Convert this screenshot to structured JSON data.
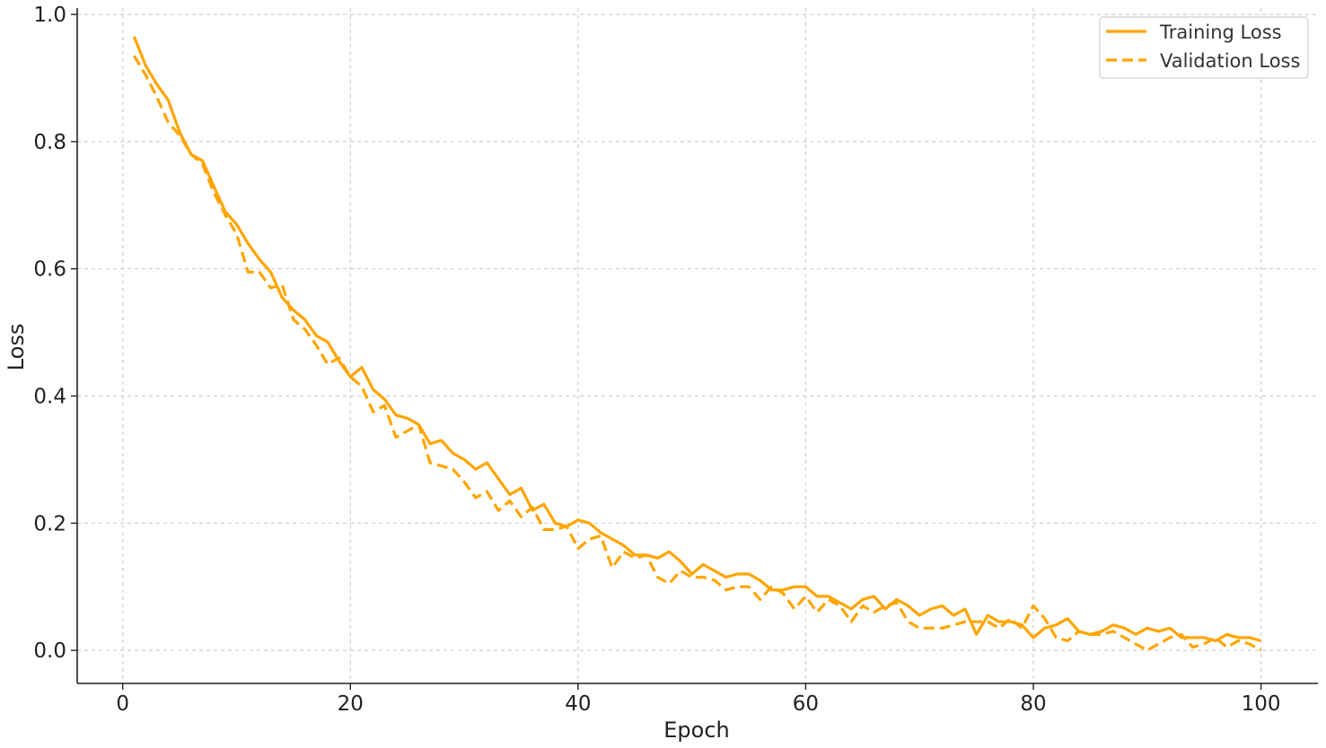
{
  "chart_data": {
    "type": "line",
    "title": "",
    "xlabel": "Epoch",
    "ylabel": "Loss",
    "xlim": [
      -4,
      105
    ],
    "ylim": [
      -0.052,
      1.01
    ],
    "xticks": [
      0,
      20,
      40,
      60,
      80,
      100
    ],
    "yticks": [
      0.0,
      0.2,
      0.4,
      0.6,
      0.8,
      1.0
    ],
    "xtick_labels": [
      "0",
      "20",
      "40",
      "60",
      "80",
      "100"
    ],
    "ytick_labels": [
      "0.0",
      "0.2",
      "0.4",
      "0.6",
      "0.8",
      "1.0"
    ],
    "grid": true,
    "legend_position": "top-right",
    "x": [
      1,
      2,
      3,
      4,
      5,
      6,
      7,
      8,
      9,
      10,
      11,
      12,
      13,
      14,
      15,
      16,
      17,
      18,
      19,
      20,
      21,
      22,
      23,
      24,
      25,
      26,
      27,
      28,
      29,
      30,
      31,
      32,
      33,
      34,
      35,
      36,
      37,
      38,
      39,
      40,
      41,
      42,
      43,
      44,
      45,
      46,
      47,
      48,
      49,
      50,
      51,
      52,
      53,
      54,
      55,
      56,
      57,
      58,
      59,
      60,
      61,
      62,
      63,
      64,
      65,
      66,
      67,
      68,
      69,
      70,
      71,
      72,
      73,
      74,
      75,
      76,
      77,
      78,
      79,
      80,
      81,
      82,
      83,
      84,
      85,
      86,
      87,
      88,
      89,
      90,
      91,
      92,
      93,
      94,
      95,
      96,
      97,
      98,
      99,
      100
    ],
    "series": [
      {
        "name": "Training Loss",
        "style": "solid",
        "color": "#FFA500",
        "values": [
          0.965,
          0.92,
          0.89,
          0.865,
          0.815,
          0.78,
          0.77,
          0.73,
          0.69,
          0.67,
          0.64,
          0.615,
          0.595,
          0.555,
          0.535,
          0.52,
          0.495,
          0.485,
          0.455,
          0.43,
          0.445,
          0.41,
          0.395,
          0.37,
          0.365,
          0.355,
          0.325,
          0.33,
          0.31,
          0.3,
          0.285,
          0.295,
          0.27,
          0.245,
          0.255,
          0.22,
          0.23,
          0.2,
          0.195,
          0.205,
          0.2,
          0.185,
          0.175,
          0.165,
          0.15,
          0.15,
          0.145,
          0.155,
          0.14,
          0.12,
          0.135,
          0.125,
          0.115,
          0.12,
          0.12,
          0.11,
          0.095,
          0.095,
          0.1,
          0.1,
          0.085,
          0.085,
          0.075,
          0.065,
          0.08,
          0.085,
          0.065,
          0.08,
          0.07,
          0.055,
          0.065,
          0.07,
          0.055,
          0.065,
          0.025,
          0.055,
          0.045,
          0.045,
          0.04,
          0.02,
          0.035,
          0.04,
          0.05,
          0.03,
          0.025,
          0.03,
          0.04,
          0.035,
          0.025,
          0.035,
          0.03,
          0.035,
          0.02,
          0.02,
          0.02,
          0.015,
          0.025,
          0.02,
          0.02,
          0.015
        ]
      },
      {
        "name": "Validation Loss",
        "style": "dashed",
        "color": "#FFA500",
        "values": [
          0.935,
          0.905,
          0.87,
          0.83,
          0.81,
          0.78,
          0.765,
          0.72,
          0.685,
          0.655,
          0.595,
          0.595,
          0.57,
          0.575,
          0.52,
          0.505,
          0.48,
          0.45,
          0.46,
          0.43,
          0.415,
          0.375,
          0.385,
          0.335,
          0.345,
          0.355,
          0.295,
          0.29,
          0.285,
          0.265,
          0.24,
          0.25,
          0.22,
          0.235,
          0.21,
          0.225,
          0.19,
          0.19,
          0.195,
          0.16,
          0.175,
          0.18,
          0.13,
          0.155,
          0.145,
          0.15,
          0.115,
          0.105,
          0.125,
          0.115,
          0.115,
          0.11,
          0.095,
          0.1,
          0.1,
          0.08,
          0.1,
          0.09,
          0.065,
          0.085,
          0.06,
          0.08,
          0.07,
          0.045,
          0.07,
          0.06,
          0.07,
          0.075,
          0.045,
          0.035,
          0.035,
          0.035,
          0.04,
          0.045,
          0.045,
          0.045,
          0.035,
          0.05,
          0.035,
          0.07,
          0.05,
          0.02,
          0.015,
          0.03,
          0.025,
          0.025,
          0.03,
          0.02,
          0.01,
          0.0,
          0.01,
          0.02,
          0.025,
          0.005,
          0.01,
          0.02,
          0.005,
          0.015,
          0.01,
          0.0
        ]
      }
    ]
  }
}
